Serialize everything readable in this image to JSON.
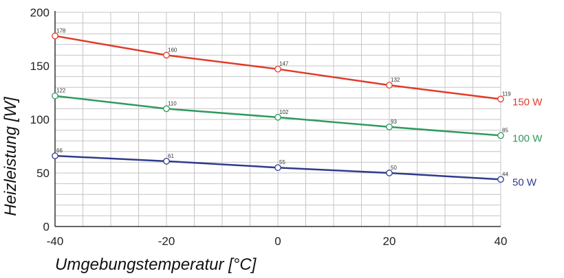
{
  "chart_data": {
    "type": "line",
    "title": "",
    "xlabel": "Umgebungstemperatur [°C]",
    "ylabel": "Heizleistung [W]",
    "x": [
      -40,
      -20,
      0,
      20,
      40
    ],
    "xlim": [
      -40,
      40
    ],
    "ylim": [
      0,
      200
    ],
    "xticks": [
      "-40",
      "-20",
      "0",
      "20",
      "40"
    ],
    "yticks": [
      "0",
      "50",
      "100",
      "150",
      "200"
    ],
    "grid": true,
    "series": [
      {
        "name": "150 W",
        "color": "#e03a2a",
        "values": [
          178,
          160,
          147,
          132,
          119
        ]
      },
      {
        "name": "100 W",
        "color": "#2e9a5c",
        "values": [
          122,
          110,
          102,
          93,
          85
        ]
      },
      {
        "name": "50 W",
        "color": "#2e3a8c",
        "values": [
          66,
          61,
          55,
          50,
          44
        ]
      }
    ]
  }
}
